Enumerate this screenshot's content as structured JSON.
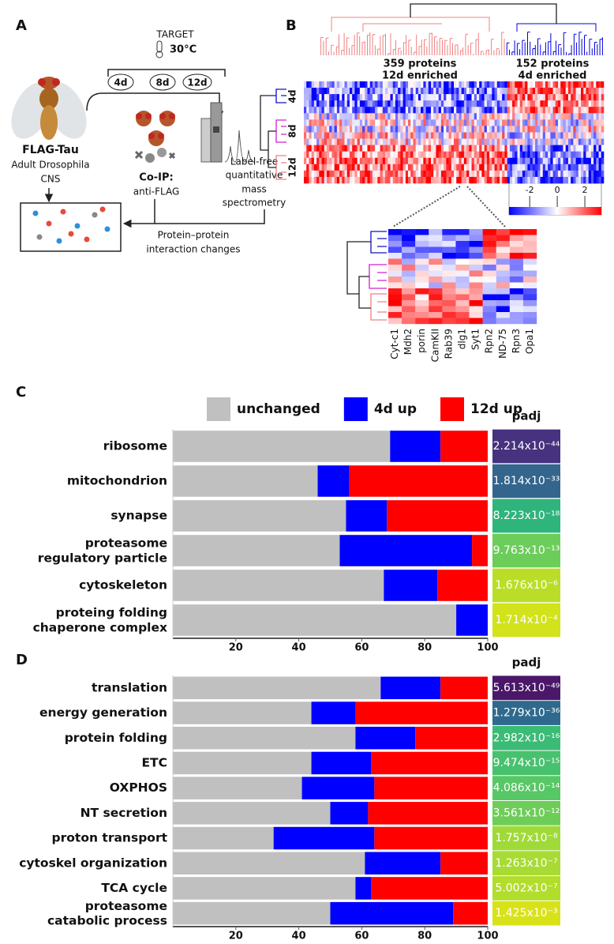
{
  "panel_a": {
    "label": "A",
    "target": "TARGET",
    "temperature": "30°C",
    "timepoints": [
      "4d",
      "8d",
      "12d"
    ],
    "sample": [
      "FLAG-Tau",
      "Adult Drosophila",
      "CNS"
    ],
    "coip": [
      "Co-IP:",
      "anti-FLAG"
    ],
    "ms": [
      "Label-free",
      "quantitative",
      "mass",
      "spectrometry"
    ],
    "result": [
      "Protein–protein",
      "interaction changes"
    ]
  },
  "panel_b": {
    "label": "B",
    "clusters": [
      {
        "count": "359 proteins",
        "note": "12d enriched"
      },
      {
        "count": "152 proteins",
        "note": "4d enriched"
      }
    ],
    "row_groups": [
      "4d",
      "8d",
      "12d"
    ],
    "colorbar_lim": [
      -3.5,
      3.2
    ],
    "colorbar_ticks": [
      -2,
      0,
      2
    ],
    "genes": [
      "Cyt-c1",
      "Mdh2",
      "porin",
      "CamKII",
      "Rab39",
      "dlg1",
      "Syt1",
      "Rpn2",
      "ND-75",
      "Rpn3",
      "Opa1"
    ]
  },
  "chart_data": [
    {
      "type": "bar",
      "orientation": "horizontal",
      "stacked": true,
      "label": "C",
      "categories": [
        "ribosome",
        "mitochondrion",
        "synapse",
        "proteasome\nregulatory particle",
        "cytoskeleton",
        "proteing folding\nchaperone complex"
      ],
      "series": [
        {
          "name": "unchanged",
          "color": "#c0c0c0",
          "values": [
            69,
            46,
            55,
            53,
            67,
            90
          ]
        },
        {
          "name": "4d up",
          "color": "#0000ff",
          "values": [
            16,
            10,
            13,
            42,
            17,
            10
          ]
        },
        {
          "name": "12d up",
          "color": "#ff0000",
          "values": [
            15,
            44,
            32,
            5,
            16,
            0
          ]
        }
      ],
      "xlim": [
        0,
        100
      ],
      "xticks": [
        20,
        40,
        60,
        80,
        100
      ],
      "padj": {
        "title": "padj",
        "values": [
          2.214e-44,
          1.814e-33,
          8.223e-18,
          9.763e-13,
          1.676e-06,
          0.0001714
        ],
        "value_labels": [
          "2.214x10⁻⁴⁴",
          "1.814x10⁻³³",
          "8.223x10⁻¹⁸",
          "9.763x10⁻¹³",
          "1.676x10⁻⁶",
          "1.714x10⁻⁴"
        ],
        "colors": [
          "#46327e",
          "#33658d",
          "#2fb47c",
          "#6ccd5a",
          "#bade28",
          "#d2e21b"
        ]
      }
    },
    {
      "type": "bar",
      "orientation": "horizontal",
      "stacked": true,
      "label": "D",
      "categories": [
        "translation",
        "energy generation",
        "protein folding",
        "ETC",
        "OXPHOS",
        "NT secretion",
        "proton transport",
        "cytoskel organization",
        "TCA cycle",
        "proteasome\ncatabolic process"
      ],
      "series": [
        {
          "color": "#c0c0c0",
          "values": [
            66,
            44,
            58,
            44,
            41,
            50,
            32,
            61,
            58,
            50
          ]
        },
        {
          "color": "#0000ff",
          "values": [
            19,
            14,
            19,
            19,
            23,
            12,
            32,
            24,
            5,
            39
          ]
        },
        {
          "color": "#ff0000",
          "values": [
            15,
            42,
            23,
            37,
            36,
            38,
            36,
            15,
            37,
            11
          ]
        }
      ],
      "xlim": [
        0,
        100
      ],
      "xticks": [
        20,
        40,
        60,
        80,
        100
      ],
      "padj": {
        "title": "padj",
        "values": [
          5.613e-49,
          1.279e-36,
          2.982e-16,
          9.474e-15,
          4.086e-14,
          3.561e-12,
          1.757e-08,
          1.263e-07,
          5.002e-07,
          0.001425
        ],
        "value_labels": [
          "5.613x10⁻⁴⁹",
          "1.279x10⁻³⁶",
          "2.982x10⁻¹⁶",
          "9.474x10⁻¹⁵",
          "4.086x10⁻¹⁴",
          "3.561x10⁻¹²",
          "1.757x10⁻⁸",
          "1.263x10⁻⁷",
          "5.002x10⁻⁷",
          "1.425x10⁻³"
        ],
        "colors": [
          "#4a1769",
          "#2f6a8e",
          "#3bbb75",
          "#48c16e",
          "#58c765",
          "#6ecd58",
          "#a0da39",
          "#a8db34",
          "#b2dd2d",
          "#d8e219"
        ]
      }
    }
  ]
}
